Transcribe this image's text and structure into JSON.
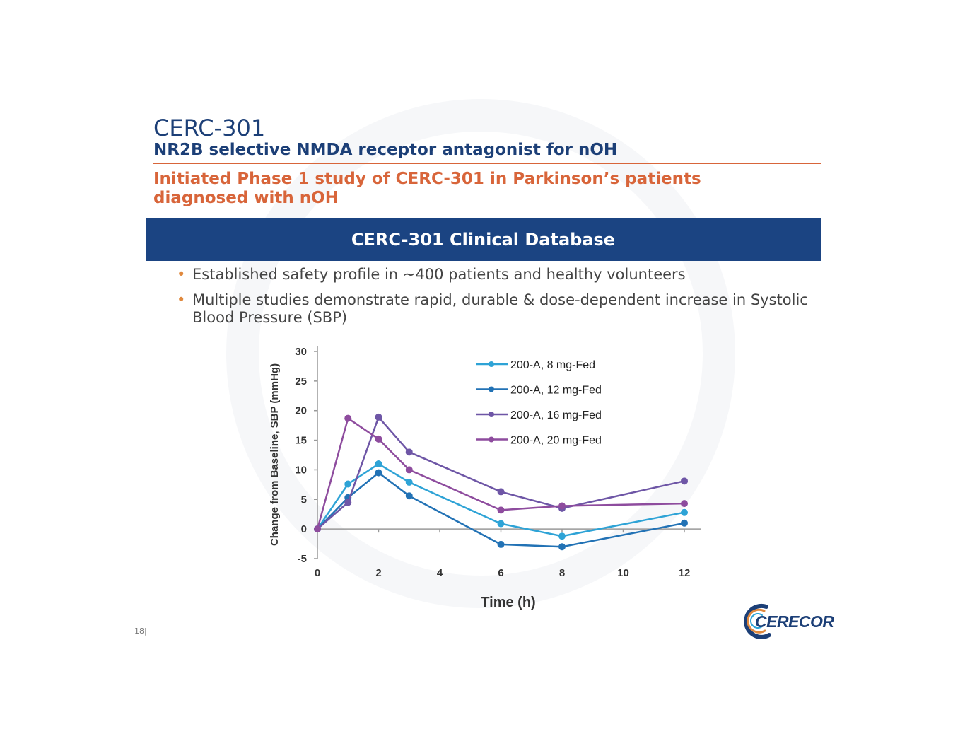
{
  "slide": {
    "title": "CERC-301",
    "subtitle": "NR2B selective NMDA receptor antagonist for nOH",
    "headline": "Initiated Phase 1 study of CERC-301 in Parkinson’s patients diagnosed with nOH",
    "banner": "CERC-301 Clinical Database",
    "bullets": [
      "Established safety profile in ~400 patients and healthy volunteers",
      "Multiple studies demonstrate rapid, durable & dose-dependent increase in Systolic Blood Pressure (SBP)"
    ],
    "page_number": "18|",
    "logo_text": "CERECOR"
  },
  "colors": {
    "accent_orange": "#d8653a",
    "title_blue": "#1c3f77",
    "banner_blue": "#1b4482"
  },
  "chart_data": {
    "type": "line",
    "xlabel": "Time (h)",
    "ylabel": "Change from Baseline, SBP (mmHg)",
    "xlim": [
      0,
      12
    ],
    "ylim": [
      -5,
      30
    ],
    "xticks": [
      0,
      2,
      4,
      6,
      8,
      10,
      12
    ],
    "yticks": [
      -5,
      0,
      5,
      10,
      15,
      20,
      25,
      30
    ],
    "legend_position": "top-right",
    "grid": false,
    "series": [
      {
        "name": "200-A, 8 mg-Fed",
        "color": "#2ea3d6",
        "x": [
          0,
          1,
          2,
          3,
          6,
          8,
          12
        ],
        "y": [
          0,
          7.6,
          11,
          7.9,
          0.9,
          -1.2,
          2.8
        ]
      },
      {
        "name": "200-A, 12 mg-Fed",
        "color": "#2272b5",
        "x": [
          0,
          1,
          2,
          3,
          6,
          8,
          12
        ],
        "y": [
          0,
          5.3,
          9.5,
          5.6,
          -2.6,
          -3,
          1
        ]
      },
      {
        "name": "200-A, 16 mg-Fed",
        "color": "#6e56a6",
        "x": [
          0,
          1,
          2,
          3,
          6,
          8,
          12
        ],
        "y": [
          0,
          4.5,
          18.9,
          13,
          6.3,
          3.5,
          8.1
        ]
      },
      {
        "name": "200-A, 20 mg-Fed",
        "color": "#8e4c9e",
        "x": [
          0,
          1,
          2,
          3,
          6,
          8,
          12
        ],
        "y": [
          0,
          18.7,
          15.2,
          10,
          3.2,
          3.9,
          4.3
        ]
      }
    ]
  }
}
